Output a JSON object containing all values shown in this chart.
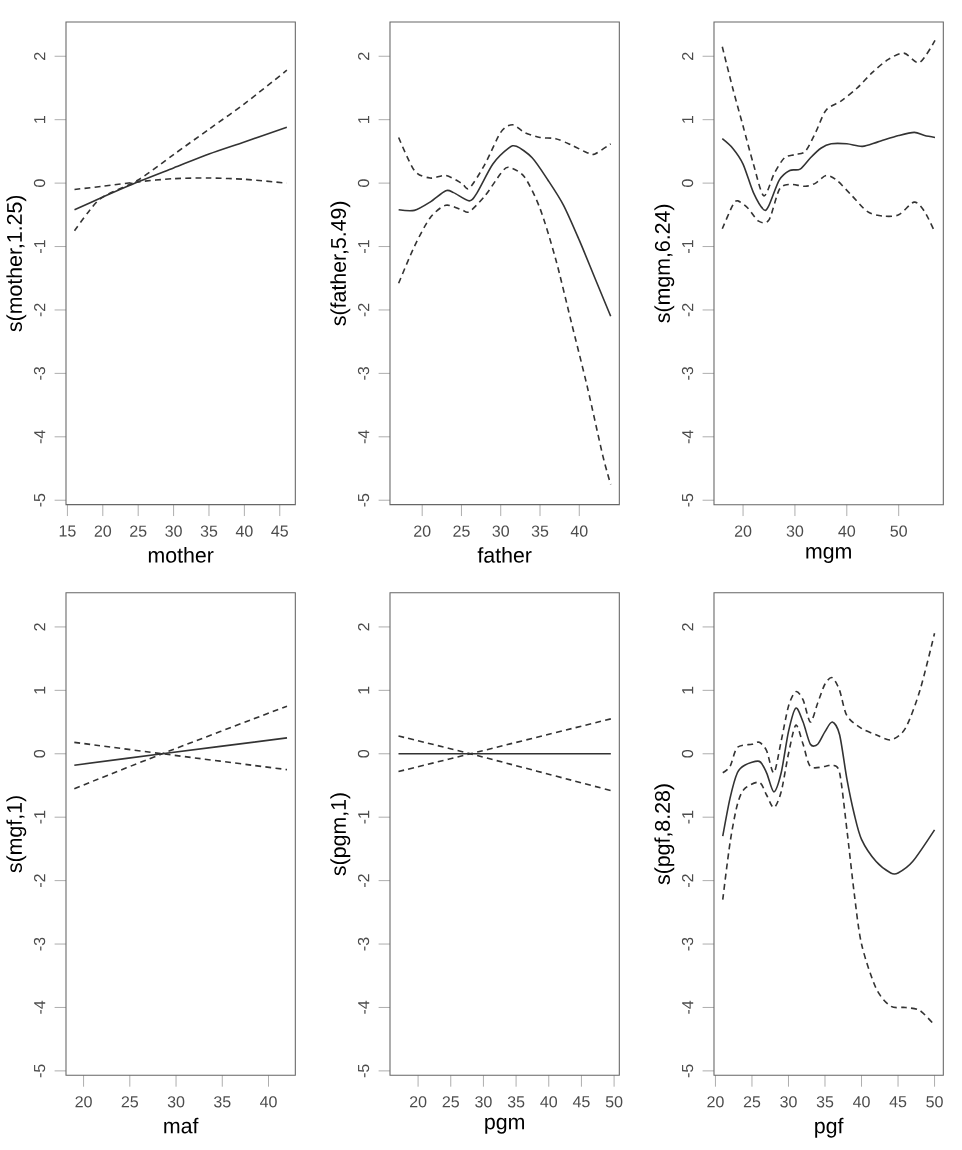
{
  "chart_data": [
    {
      "type": "line",
      "xlabel": "mother",
      "ylabel": "s(mother,1.25)",
      "xlim": [
        14.8,
        47.2
      ],
      "ylim": [
        -5.07,
        2.54
      ],
      "xticks": [
        15,
        20,
        25,
        30,
        35,
        40,
        45
      ],
      "yticks": [
        -5,
        -4,
        -3,
        -2,
        -1,
        0,
        1,
        2
      ],
      "series": [
        {
          "color": "#333333",
          "line_style": "solid",
          "x": [
            16,
            20,
            25,
            30,
            35,
            40,
            46
          ],
          "values": [
            -0.42,
            -0.22,
            0.02,
            0.24,
            0.46,
            0.65,
            0.88
          ]
        },
        {
          "color": "#333333",
          "line_style": "dashed",
          "x": [
            16,
            18,
            20,
            25,
            30,
            35,
            40,
            46
          ],
          "values": [
            -0.75,
            -0.45,
            -0.22,
            0.05,
            0.45,
            0.85,
            1.25,
            1.78
          ]
        },
        {
          "color": "#333333",
          "line_style": "dashed",
          "x": [
            16,
            20,
            25,
            30,
            35,
            40,
            46
          ],
          "values": [
            -0.1,
            -0.05,
            0.02,
            0.07,
            0.08,
            0.06,
            0.0
          ]
        }
      ]
    },
    {
      "type": "line",
      "xlabel": "father",
      "ylabel": "s(father,5.49)",
      "xlim": [
        15.9,
        45.1
      ],
      "ylim": [
        -5.07,
        2.54
      ],
      "xticks": [
        20,
        25,
        30,
        35,
        40
      ],
      "yticks": [
        -5,
        -4,
        -3,
        -2,
        -1,
        0,
        1,
        2
      ],
      "series": [
        {
          "color": "#333333",
          "line_style": "solid",
          "x": [
            17,
            19,
            21,
            23,
            24,
            26,
            27,
            29,
            31,
            32,
            34,
            36,
            38,
            40,
            42,
            44
          ],
          "values": [
            -0.42,
            -0.43,
            -0.3,
            -0.12,
            -0.15,
            -0.28,
            -0.15,
            0.3,
            0.55,
            0.58,
            0.4,
            0.05,
            -0.35,
            -0.9,
            -1.5,
            -2.1
          ]
        },
        {
          "color": "#333333",
          "line_style": "dashed",
          "x": [
            17,
            19,
            21,
            23,
            25,
            26,
            28,
            30,
            31.5,
            33,
            35,
            37,
            39,
            41,
            42,
            44
          ],
          "values": [
            0.72,
            0.2,
            0.08,
            0.12,
            0.0,
            -0.08,
            0.3,
            0.8,
            0.92,
            0.8,
            0.72,
            0.7,
            0.6,
            0.48,
            0.46,
            0.62
          ]
        },
        {
          "color": "#333333",
          "line_style": "dashed",
          "x": [
            17,
            19,
            21,
            23,
            25,
            26,
            28,
            30,
            31,
            33,
            35,
            37,
            39,
            41,
            43,
            44
          ],
          "values": [
            -1.58,
            -1.0,
            -0.55,
            -0.35,
            -0.42,
            -0.45,
            -0.2,
            0.15,
            0.25,
            0.1,
            -0.4,
            -1.2,
            -2.2,
            -3.2,
            -4.3,
            -4.75
          ]
        }
      ]
    },
    {
      "type": "line",
      "xlabel": "mgm",
      "ylabel": "s(mgm,6.24)",
      "xlim": [
        14.4,
        58.6
      ],
      "ylim": [
        -5.07,
        2.54
      ],
      "xticks": [
        20,
        30,
        40,
        50
      ],
      "yticks": [
        -5,
        -4,
        -3,
        -2,
        -1,
        0,
        1,
        2
      ],
      "series": [
        {
          "color": "#333333",
          "line_style": "solid",
          "x": [
            16,
            18,
            20,
            22,
            24,
            25,
            27,
            29,
            31,
            33,
            35,
            37,
            40,
            43,
            46,
            50,
            53,
            55,
            57
          ],
          "values": [
            0.7,
            0.55,
            0.3,
            -0.15,
            -0.42,
            -0.35,
            0.05,
            0.2,
            0.22,
            0.4,
            0.55,
            0.62,
            0.62,
            0.58,
            0.65,
            0.75,
            0.8,
            0.75,
            0.72
          ]
        },
        {
          "color": "#333333",
          "line_style": "dashed",
          "x": [
            16,
            18,
            20,
            22,
            24,
            26,
            28,
            30,
            32,
            34,
            36,
            39,
            42,
            45,
            48,
            51,
            54,
            57
          ],
          "values": [
            2.15,
            1.5,
            0.9,
            0.3,
            -0.2,
            0.15,
            0.4,
            0.45,
            0.5,
            0.8,
            1.15,
            1.3,
            1.5,
            1.75,
            1.95,
            2.05,
            1.9,
            2.25
          ]
        },
        {
          "color": "#333333",
          "line_style": "dashed",
          "x": [
            16,
            18,
            19,
            21,
            23,
            25,
            27,
            29,
            32,
            34,
            36,
            38,
            41,
            44,
            47,
            50,
            53,
            55,
            57
          ],
          "values": [
            -0.72,
            -0.35,
            -0.28,
            -0.4,
            -0.6,
            -0.58,
            -0.1,
            -0.02,
            -0.05,
            0.0,
            0.12,
            0.05,
            -0.2,
            -0.45,
            -0.52,
            -0.5,
            -0.3,
            -0.45,
            -0.78
          ]
        }
      ]
    },
    {
      "type": "line",
      "xlabel": "maf",
      "ylabel": "s(mgf,1)",
      "xlim": [
        18.1,
        42.9
      ],
      "ylim": [
        -5.07,
        2.54
      ],
      "xticks": [
        20,
        25,
        30,
        35,
        40
      ],
      "yticks": [
        -5,
        -4,
        -3,
        -2,
        -1,
        0,
        1,
        2
      ],
      "series": [
        {
          "color": "#333333",
          "line_style": "solid",
          "x": [
            19,
            28.5,
            42
          ],
          "values": [
            -0.18,
            0.0,
            0.25
          ]
        },
        {
          "color": "#333333",
          "line_style": "dashed",
          "x": [
            19,
            28.5,
            42
          ],
          "values": [
            -0.55,
            0.0,
            0.75
          ]
        },
        {
          "color": "#333333",
          "line_style": "dashed",
          "x": [
            19,
            28.5,
            42
          ],
          "values": [
            0.18,
            0.0,
            -0.25
          ]
        }
      ]
    },
    {
      "type": "line",
      "xlabel": "pgm",
      "ylabel": "s(pgm,1)",
      "xlim": [
        15.7,
        50.8
      ],
      "ylim": [
        -5.07,
        2.54
      ],
      "xticks": [
        20,
        25,
        30,
        35,
        40,
        45,
        50
      ],
      "yticks": [
        -5,
        -4,
        -3,
        -2,
        -1,
        0,
        1,
        2
      ],
      "series": [
        {
          "color": "#333333",
          "line_style": "solid",
          "x": [
            17,
            49.5
          ],
          "values": [
            0.0,
            0.0
          ]
        },
        {
          "color": "#333333",
          "line_style": "dashed",
          "x": [
            17,
            28,
            49.5
          ],
          "values": [
            0.28,
            0.0,
            -0.58
          ]
        },
        {
          "color": "#333333",
          "line_style": "dashed",
          "x": [
            17,
            28,
            49.5
          ],
          "values": [
            -0.28,
            0.0,
            0.55
          ]
        }
      ]
    },
    {
      "type": "line",
      "xlabel": "pgf",
      "ylabel": "s(pgf,8.28)",
      "xlim": [
        19.8,
        51.2
      ],
      "ylim": [
        -5.07,
        2.54
      ],
      "xticks": [
        20,
        25,
        30,
        35,
        40,
        45,
        50
      ],
      "yticks": [
        -5,
        -4,
        -3,
        -2,
        -1,
        0,
        1,
        2
      ],
      "series": [
        {
          "color": "#333333",
          "line_style": "solid",
          "x": [
            21,
            22,
            23,
            24,
            26,
            27,
            28,
            29,
            30,
            31,
            32,
            33,
            34,
            35,
            36,
            37,
            38,
            39,
            40,
            42,
            44,
            45,
            47,
            50
          ],
          "values": [
            -1.3,
            -0.7,
            -0.3,
            -0.18,
            -0.12,
            -0.3,
            -0.6,
            -0.3,
            0.35,
            0.72,
            0.5,
            0.15,
            0.15,
            0.35,
            0.5,
            0.3,
            -0.4,
            -0.95,
            -1.35,
            -1.7,
            -1.88,
            -1.88,
            -1.7,
            -1.2
          ]
        },
        {
          "color": "#333333",
          "line_style": "dashed",
          "x": [
            21,
            22,
            23,
            25,
            26,
            27,
            28,
            29,
            30,
            31,
            32,
            33,
            34,
            35,
            36,
            37,
            38,
            40,
            42,
            44,
            46,
            48,
            50
          ],
          "values": [
            -0.3,
            -0.2,
            0.1,
            0.15,
            0.18,
            0.05,
            -0.3,
            0.2,
            0.75,
            0.98,
            0.85,
            0.5,
            0.8,
            1.1,
            1.2,
            1.0,
            0.6,
            0.4,
            0.3,
            0.22,
            0.4,
            1.0,
            1.9
          ]
        },
        {
          "color": "#333333",
          "line_style": "dashed",
          "x": [
            21,
            22,
            23,
            24,
            26,
            27,
            28,
            29,
            30,
            31,
            32,
            33,
            35,
            36,
            37,
            38,
            39,
            40,
            42,
            44,
            46,
            48,
            50
          ],
          "values": [
            -2.3,
            -1.4,
            -0.8,
            -0.55,
            -0.45,
            -0.65,
            -0.85,
            -0.6,
            0.0,
            0.45,
            0.15,
            -0.2,
            -0.2,
            -0.18,
            -0.3,
            -1.2,
            -2.2,
            -3.0,
            -3.7,
            -3.98,
            -4.0,
            -4.05,
            -4.28
          ]
        }
      ]
    }
  ]
}
